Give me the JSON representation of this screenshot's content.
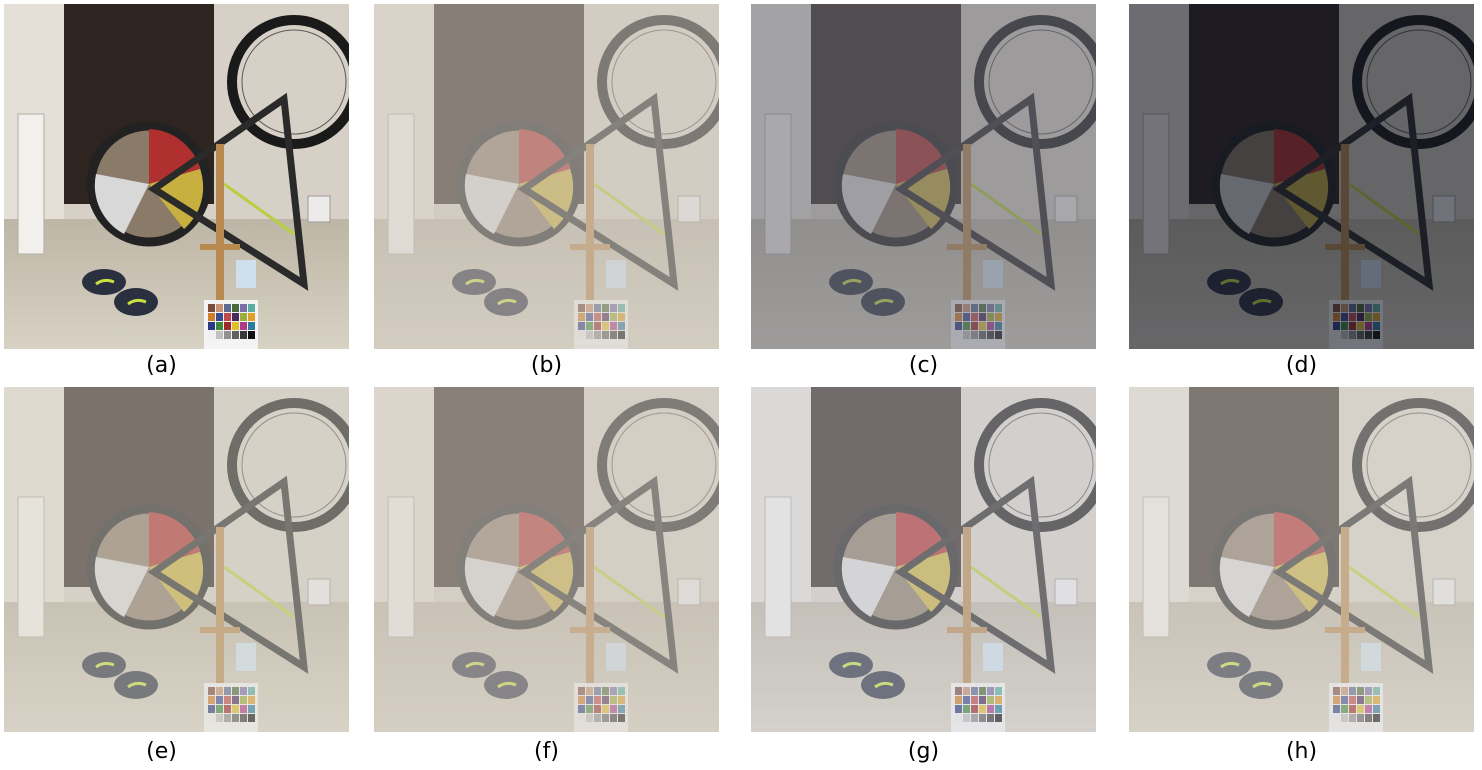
{
  "panels": [
    {
      "label": "(a)",
      "variant": "clear",
      "haze": 0.0,
      "tint": "#ffffff",
      "dark": 0.0
    },
    {
      "label": "(b)",
      "variant": "hazy",
      "haze": 0.55,
      "tint": "#cfc8c0",
      "dark": 0.0
    },
    {
      "label": "(c)",
      "variant": "dehazed",
      "haze": 0.3,
      "tint": "#b8b8c4",
      "dark": 0.35
    },
    {
      "label": "(d)",
      "variant": "dark",
      "haze": 0.05,
      "tint": "#3a4050",
      "dark": 0.55
    },
    {
      "label": "(e)",
      "variant": "hazy",
      "haze": 0.45,
      "tint": "#d8d2c8",
      "dark": 0.0
    },
    {
      "label": "(f)",
      "variant": "hazy",
      "haze": 0.55,
      "tint": "#d4ccc2",
      "dark": 0.0
    },
    {
      "label": "(g)",
      "variant": "bright",
      "haze": 0.35,
      "tint": "#f4f4f8",
      "dark": 0.1
    },
    {
      "label": "(h)",
      "variant": "hazy",
      "haze": 0.45,
      "tint": "#e2ddd6",
      "dark": 0.05
    }
  ]
}
